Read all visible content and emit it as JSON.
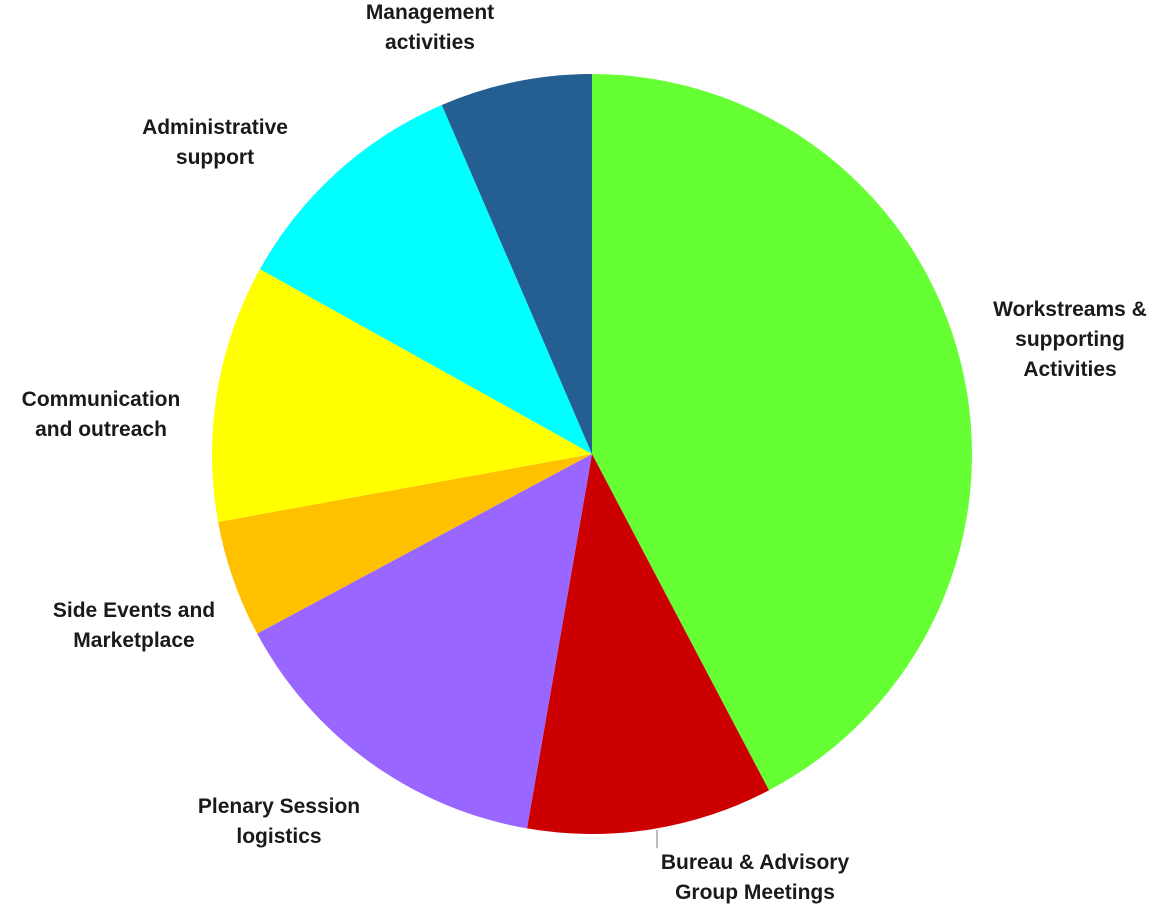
{
  "chart_data": {
    "type": "pie",
    "title": "",
    "slices": [
      {
        "label": [
          "Workstreams &",
          "supporting",
          "Activities"
        ],
        "value": 42.5,
        "color": "#66ff33"
      },
      {
        "label": [
          "Bureau & Advisory",
          "Group Meetings"
        ],
        "value": 10.5,
        "color": "#cc0000"
      },
      {
        "label": [
          "Plenary Session",
          "logistics"
        ],
        "value": 14.5,
        "color": "#9966ff"
      },
      {
        "label": [
          "Side Events and",
          "Marketplace"
        ],
        "value": 5.0,
        "color": "#ffc000"
      },
      {
        "label": [
          "Communication",
          "and outreach"
        ],
        "value": 11.0,
        "color": "#ffff00"
      },
      {
        "label": [
          "Administrative",
          "support"
        ],
        "value": 10.5,
        "color": "#00ffff"
      },
      {
        "label": [
          "Management",
          "activities"
        ],
        "value": 6.5,
        "color": "#255e91"
      }
    ],
    "start_angle_deg": 0,
    "direction": "clockwise",
    "legend": "none"
  }
}
